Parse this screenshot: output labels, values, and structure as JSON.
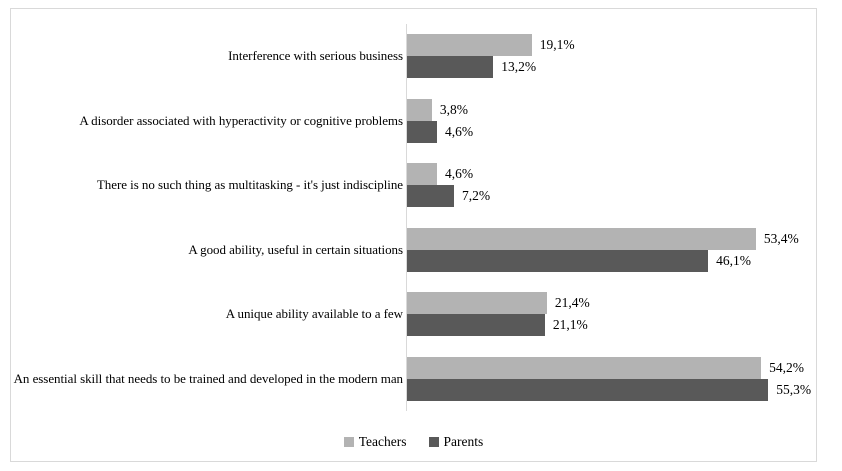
{
  "chart_data": {
    "type": "bar",
    "orientation": "horizontal",
    "title": "",
    "xlabel": "",
    "ylabel": "",
    "grid": false,
    "legend_position": "bottom",
    "value_axis_max": 60,
    "categories": [
      "Interference with serious business",
      "A disorder associated with hyperactivity or cognitive problems",
      "There is no such thing as multitasking - it's just indiscipline",
      "A good ability, useful in certain situations",
      "A unique ability available to a few",
      "An essential skill that needs to be trained and developed in the modern man"
    ],
    "series": [
      {
        "name": "Teachers",
        "color": "#b3b3b3",
        "values": [
          19.1,
          3.8,
          4.6,
          53.4,
          21.4,
          54.2
        ],
        "labels": [
          "19,1%",
          "3,8%",
          "4,6%",
          "53,4%",
          "21,4%",
          "54,2%"
        ]
      },
      {
        "name": "Parents",
        "color": "#595959",
        "values": [
          13.2,
          4.6,
          7.2,
          46.1,
          21.1,
          55.3
        ],
        "labels": [
          "13,2%",
          "4,6%",
          "7,2%",
          "46,1%",
          "21,1%",
          "55,3%"
        ]
      }
    ],
    "frame_color": "#d9d9d9",
    "axis_color": "#d9d9d9"
  }
}
